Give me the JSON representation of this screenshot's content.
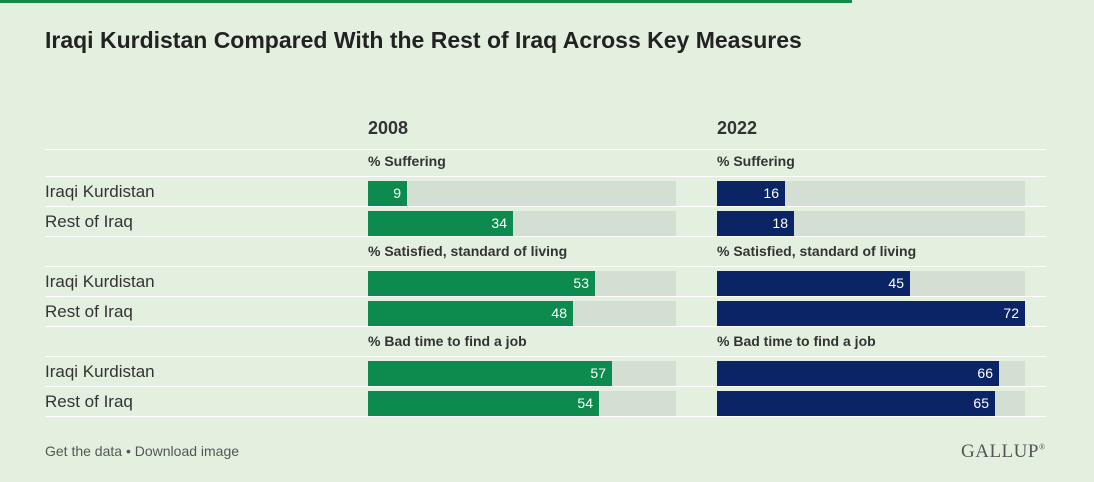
{
  "title": "Iraqi Kurdistan Compared With the Rest of Iraq Across Key Measures",
  "footer": {
    "get_data": "Get the data",
    "separator": " • ",
    "download": "Download image"
  },
  "logo": "GALLUP",
  "colors": {
    "y2008": "#0d8a4e",
    "y2022": "#0b2466",
    "track": "#d4dfd3",
    "background": "#e3f0e0"
  },
  "chart_data": {
    "type": "bar",
    "title": "Iraqi Kurdistan Compared With the Rest of Iraq Across Key Measures",
    "columns": [
      "2008",
      "2022"
    ],
    "xlim": [
      0,
      72
    ],
    "measures": [
      {
        "label": "% Suffering",
        "rows": [
          {
            "name": "Iraqi Kurdistan",
            "values": [
              9,
              16
            ]
          },
          {
            "name": "Rest of Iraq",
            "values": [
              34,
              18
            ]
          }
        ]
      },
      {
        "label": "% Satisfied, standard of living",
        "rows": [
          {
            "name": "Iraqi Kurdistan",
            "values": [
              53,
              45
            ]
          },
          {
            "name": "Rest of Iraq",
            "values": [
              48,
              72
            ]
          }
        ]
      },
      {
        "label": "% Bad time to find a job",
        "rows": [
          {
            "name": "Iraqi Kurdistan",
            "values": [
              57,
              66
            ]
          },
          {
            "name": "Rest of Iraq",
            "values": [
              54,
              65
            ]
          }
        ]
      }
    ]
  }
}
